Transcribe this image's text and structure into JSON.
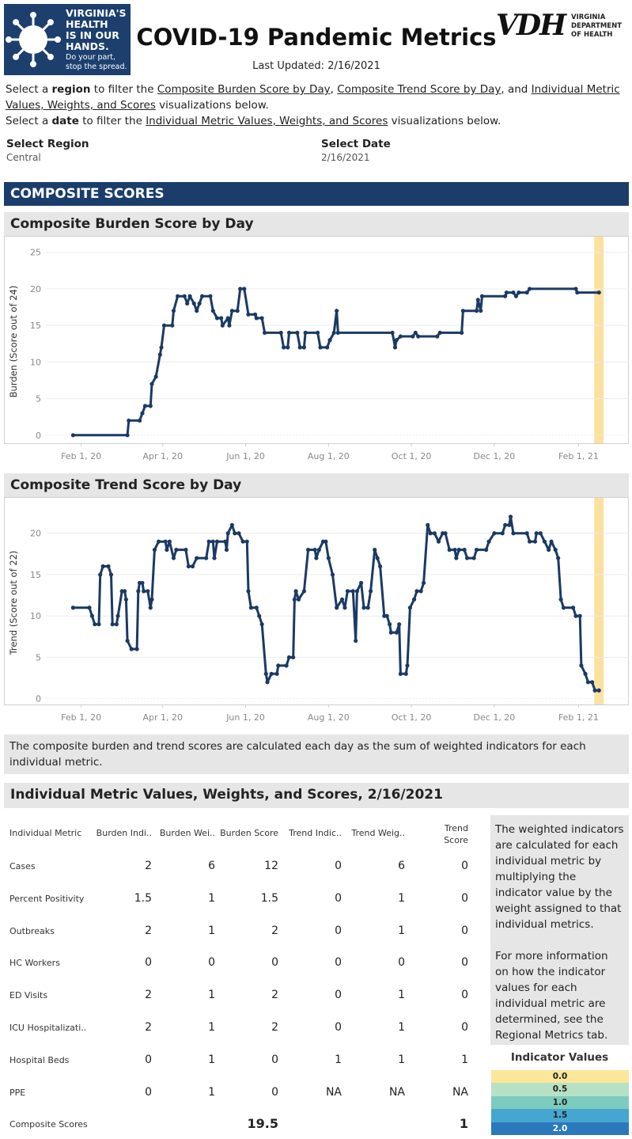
{
  "header": {
    "badge_lines": [
      "VIRGINIA'S",
      "HEALTH",
      "IS IN OUR",
      "HANDS."
    ],
    "badge_tagline": [
      "Do your part,",
      "stop the spread."
    ],
    "title": "COVID-19 Pandemic Metrics",
    "updated": "Last Updated: 2/16/2021",
    "vdh_mark": "VDH",
    "vdh_name": [
      "VIRGINIA",
      "DEPARTMENT",
      "OF HEALTH"
    ]
  },
  "instructions": [
    [
      {
        "text": "Select a ",
        "style": "plain"
      },
      {
        "text": "region",
        "style": "bold"
      },
      {
        "text": " to filter the ",
        "style": "plain"
      },
      {
        "text": "Composite Burden Score by Day",
        "style": "underline"
      },
      {
        "text": ", ",
        "style": "plain"
      },
      {
        "text": "Composite Trend Score by Day",
        "style": "underline"
      },
      {
        "text": ", and ",
        "style": "plain"
      },
      {
        "text": "Individual Metric Values, Weights, and Scores",
        "style": "underline"
      },
      {
        "text": " visualizations below.",
        "style": "plain"
      }
    ],
    [
      {
        "text": "Select a ",
        "style": "plain"
      },
      {
        "text": "date",
        "style": "bold"
      },
      {
        "text": " to filter the ",
        "style": "plain"
      },
      {
        "text": "Individual Metric Values, Weights, and Scores",
        "style": "underline"
      },
      {
        "text": " visualizations below.",
        "style": "plain"
      }
    ]
  ],
  "filters": [
    {
      "label": "Select Region",
      "value": "Central"
    },
    {
      "label": "Select Date",
      "value": "2/16/2021"
    }
  ],
  "section": "COMPOSITE SCORES",
  "chart_data": [
    {
      "type": "line",
      "title": "Composite Burden Score by Day",
      "y_label": "Burden (Score out of 24)",
      "color": "#1b3a63",
      "highlight_x": "2021-02-16",
      "highlight_color": "#fbe1a0",
      "xlim": [
        "2020-01-06",
        "2021-03-10"
      ],
      "xticks": [
        {
          "value": "2020-02-01",
          "label": "Feb 1, 20"
        },
        {
          "value": "2020-04-01",
          "label": "Apr 1, 20"
        },
        {
          "value": "2020-06-01",
          "label": "Jun 1, 20"
        },
        {
          "value": "2020-08-01",
          "label": "Aug 1, 20"
        },
        {
          "value": "2020-10-01",
          "label": "Oct 1, 20"
        },
        {
          "value": "2020-12-01",
          "label": "Dec 1, 20"
        },
        {
          "value": "2021-02-01",
          "label": "Feb 1, 21"
        }
      ],
      "ylim": [
        -1.1,
        26.7
      ],
      "yticks": [
        0,
        5,
        10,
        15,
        20,
        25
      ],
      "x": [
        "2020-01-26",
        "2020-03-06",
        "2020-03-07",
        "2020-03-15",
        "2020-03-17",
        "2020-03-19",
        "2020-03-23",
        "2020-03-24",
        "2020-03-27",
        "2020-03-30",
        "2020-03-31",
        "2020-04-02",
        "2020-04-08",
        "2020-04-09",
        "2020-04-12",
        "2020-04-17",
        "2020-04-19",
        "2020-04-21",
        "2020-04-24",
        "2020-04-26",
        "2020-04-28",
        "2020-04-30",
        "2020-05-06",
        "2020-05-08",
        "2020-05-11",
        "2020-05-14",
        "2020-05-15",
        "2020-05-19",
        "2020-05-20",
        "2020-05-22",
        "2020-05-26",
        "2020-05-28",
        "2020-05-31",
        "2020-06-03",
        "2020-06-08",
        "2020-06-09",
        "2020-06-13",
        "2020-06-15",
        "2020-06-27",
        "2020-06-29",
        "2020-07-02",
        "2020-07-03",
        "2020-07-09",
        "2020-07-11",
        "2020-07-14",
        "2020-07-15",
        "2020-07-24",
        "2020-07-26",
        "2020-07-31",
        "2020-08-02",
        "2020-08-05",
        "2020-08-07",
        "2020-08-08",
        "2020-09-17",
        "2020-09-19",
        "2020-09-20",
        "2020-09-23",
        "2020-10-02",
        "2020-10-04",
        "2020-10-06",
        "2020-10-20",
        "2020-10-22",
        "2020-11-07",
        "2020-11-08",
        "2020-11-18",
        "2020-11-19",
        "2020-11-21",
        "2020-11-22",
        "2020-12-09",
        "2020-12-10",
        "2020-12-15",
        "2020-12-17",
        "2020-12-19",
        "2020-12-25",
        "2020-12-27",
        "2021-01-30",
        "2021-01-31",
        "2021-02-16"
      ],
      "values": [
        0,
        0,
        2,
        2,
        3,
        4,
        4,
        7,
        8,
        11,
        12,
        15,
        15,
        17,
        19,
        19,
        18,
        19,
        18,
        17,
        18,
        19,
        19,
        17,
        16,
        16,
        15,
        16,
        15,
        17,
        17,
        20,
        20,
        16.5,
        16.5,
        16,
        16,
        14,
        14,
        12,
        12,
        14,
        14,
        12,
        12,
        14,
        14,
        12,
        12,
        13,
        14,
        17,
        14,
        14,
        12,
        13,
        13.5,
        13.5,
        14,
        13.5,
        13.5,
        14,
        14,
        17,
        17,
        18.5,
        17,
        19,
        19,
        19.5,
        19.5,
        19,
        19.5,
        19.5,
        20,
        20,
        19.5,
        19.5
      ]
    },
    {
      "type": "line",
      "title": "Composite Trend Score by Day",
      "y_label": "Trend (Score out of 22)",
      "color": "#1b3a63",
      "highlight_x": "2021-02-16",
      "highlight_color": "#fbe1a0",
      "xlim": [
        "2020-01-06",
        "2021-03-10"
      ],
      "xticks": [
        {
          "value": "2020-02-01",
          "label": "Feb 1, 20"
        },
        {
          "value": "2020-04-01",
          "label": "Apr 1, 20"
        },
        {
          "value": "2020-06-01",
          "label": "Jun 1, 20"
        },
        {
          "value": "2020-08-01",
          "label": "Aug 1, 20"
        },
        {
          "value": "2020-10-01",
          "label": "Oct 1, 20"
        },
        {
          "value": "2020-12-01",
          "label": "Dec 1, 20"
        },
        {
          "value": "2021-02-01",
          "label": "Feb 1, 21"
        }
      ],
      "ylim": [
        -0.7,
        23.9
      ],
      "yticks": [
        0,
        5,
        10,
        15,
        20
      ],
      "x": [
        "2020-01-26",
        "2020-02-07",
        "2020-02-09",
        "2020-02-11",
        "2020-02-14",
        "2020-02-15",
        "2020-02-17",
        "2020-02-21",
        "2020-02-23",
        "2020-02-24",
        "2020-02-27",
        "2020-02-28",
        "2020-03-02",
        "2020-03-04",
        "2020-03-05",
        "2020-03-06",
        "2020-03-09",
        "2020-03-13",
        "2020-03-14",
        "2020-03-15",
        "2020-03-17",
        "2020-03-18",
        "2020-03-21",
        "2020-03-23",
        "2020-03-24",
        "2020-03-26",
        "2020-03-29",
        "2020-04-03",
        "2020-04-04",
        "2020-04-06",
        "2020-04-09",
        "2020-04-11",
        "2020-04-18",
        "2020-04-20",
        "2020-04-23",
        "2020-04-26",
        "2020-05-03",
        "2020-05-05",
        "2020-05-08",
        "2020-05-09",
        "2020-05-11",
        "2020-05-17",
        "2020-05-18",
        "2020-05-19",
        "2020-05-22",
        "2020-05-24",
        "2020-05-27",
        "2020-05-30",
        "2020-06-02",
        "2020-06-03",
        "2020-06-05",
        "2020-06-09",
        "2020-06-11",
        "2020-06-13",
        "2020-06-16",
        "2020-06-17",
        "2020-06-20",
        "2020-06-24",
        "2020-06-25",
        "2020-07-01",
        "2020-07-03",
        "2020-07-06",
        "2020-07-07",
        "2020-07-08",
        "2020-07-10",
        "2020-07-14",
        "2020-07-17",
        "2020-07-22",
        "2020-07-23",
        "2020-07-25",
        "2020-07-28",
        "2020-07-30",
        "2020-08-01",
        "2020-08-04",
        "2020-08-07",
        "2020-08-11",
        "2020-08-13",
        "2020-08-15",
        "2020-08-19",
        "2020-08-21",
        "2020-08-22",
        "2020-08-25",
        "2020-08-27",
        "2020-08-30",
        "2020-09-01",
        "2020-09-04",
        "2020-09-06",
        "2020-09-08",
        "2020-09-11",
        "2020-09-13",
        "2020-09-15",
        "2020-09-16",
        "2020-09-20",
        "2020-09-22",
        "2020-09-23",
        "2020-09-27",
        "2020-09-28",
        "2020-09-30",
        "2020-10-03",
        "2020-10-05",
        "2020-10-08",
        "2020-10-10",
        "2020-10-13",
        "2020-10-15",
        "2020-10-18",
        "2020-10-21",
        "2020-10-24",
        "2020-10-26",
        "2020-10-29",
        "2020-11-02",
        "2020-11-03",
        "2020-11-05",
        "2020-11-09",
        "2020-11-11",
        "2020-11-16",
        "2020-11-18",
        "2020-11-25",
        "2020-11-27",
        "2020-12-01",
        "2020-12-07",
        "2020-12-09",
        "2020-12-12",
        "2020-12-13",
        "2020-12-15",
        "2020-12-25",
        "2020-12-27",
        "2020-12-31",
        "2021-01-01",
        "2021-01-04",
        "2021-01-07",
        "2021-01-10",
        "2021-01-12",
        "2021-01-15",
        "2021-01-17",
        "2021-01-19",
        "2021-01-21",
        "2021-01-28",
        "2021-01-30",
        "2021-02-02",
        "2021-02-03",
        "2021-02-06",
        "2021-02-08",
        "2021-02-11",
        "2021-02-13",
        "2021-02-16"
      ],
      "values": [
        11,
        11,
        10,
        9,
        9,
        15,
        16,
        16,
        15,
        9,
        9,
        10,
        13,
        13,
        12,
        7,
        6,
        6,
        13,
        14,
        14,
        13,
        13,
        11,
        12,
        18,
        19,
        19,
        18,
        19,
        17,
        18,
        18,
        16,
        16,
        17,
        17,
        19,
        19,
        17,
        19,
        19,
        18,
        20,
        21,
        20,
        20,
        19,
        19,
        13,
        11,
        11,
        10,
        9,
        3,
        2,
        3,
        3,
        4,
        4,
        5,
        5,
        12,
        13,
        12,
        13,
        18,
        18,
        17,
        18,
        19,
        19,
        17,
        15,
        11,
        12,
        11,
        13,
        13,
        7,
        13,
        14,
        11,
        11,
        13,
        18,
        17,
        16,
        10,
        10,
        9,
        8,
        8,
        9,
        3,
        3,
        4,
        11,
        12,
        13,
        13,
        14,
        21,
        20,
        20,
        19,
        20,
        20,
        18,
        18,
        17,
        18,
        18,
        17,
        17,
        18,
        18,
        19,
        20,
        20,
        21,
        21,
        22,
        20,
        20,
        19,
        19,
        20,
        20,
        19,
        18,
        19,
        18,
        17,
        12,
        11,
        11,
        10,
        10,
        4,
        3,
        2,
        2,
        1,
        1
      ]
    }
  ],
  "note": "The composite burden and trend scores are calculated each day as the sum of weighted indicators for each individual metric.",
  "table": {
    "title": "Individual Metric Values, Weights, and Scores, 2/16/2021",
    "columns": [
      "Individual Metric",
      "Burden Indi..",
      "Burden Wei..",
      "Burden Score",
      "Trend Indic..",
      "Trend Weig..",
      "Trend Score"
    ],
    "rows": [
      [
        "Cases",
        2,
        6,
        12,
        0,
        6,
        0
      ],
      [
        "Percent Positivity",
        1.5,
        1,
        1.5,
        0,
        1,
        0
      ],
      [
        "Outbreaks",
        2,
        1,
        2,
        0,
        1,
        0
      ],
      [
        "HC Workers",
        0,
        0,
        0,
        0,
        0,
        0
      ],
      [
        "ED Visits",
        2,
        1,
        2,
        0,
        1,
        0
      ],
      [
        "ICU Hospitalizati..",
        2,
        1,
        2,
        0,
        1,
        0
      ],
      [
        "Hospital Beds",
        0,
        1,
        0,
        1,
        1,
        1
      ],
      [
        "PPE",
        0,
        1,
        0,
        "NA",
        "NA",
        "NA"
      ]
    ],
    "total": {
      "label": "Composite Scores",
      "burden_score": 19.5,
      "trend_score": 1
    }
  },
  "side_note": [
    "The weighted indicators are calculated for each individual metric by multiplying the indicator value by the weight assigned to that individual metrics.",
    "For more information on how the indicator values for each individual metric are determined, see the Regional Metrics tab."
  ],
  "legend": {
    "title": "Indicator Values",
    "items": [
      {
        "value": 0,
        "label": "0.0",
        "color": "#fce699"
      },
      {
        "value": 0.5,
        "label": "0.5",
        "color": "#b7e1c4"
      },
      {
        "value": 1,
        "label": "1.0",
        "color": "#7dcbbe"
      },
      {
        "value": 1.5,
        "label": "1.5",
        "color": "#47a6cf"
      },
      {
        "value": 2,
        "label": "2.0",
        "color": "#2b78bd"
      }
    ]
  }
}
